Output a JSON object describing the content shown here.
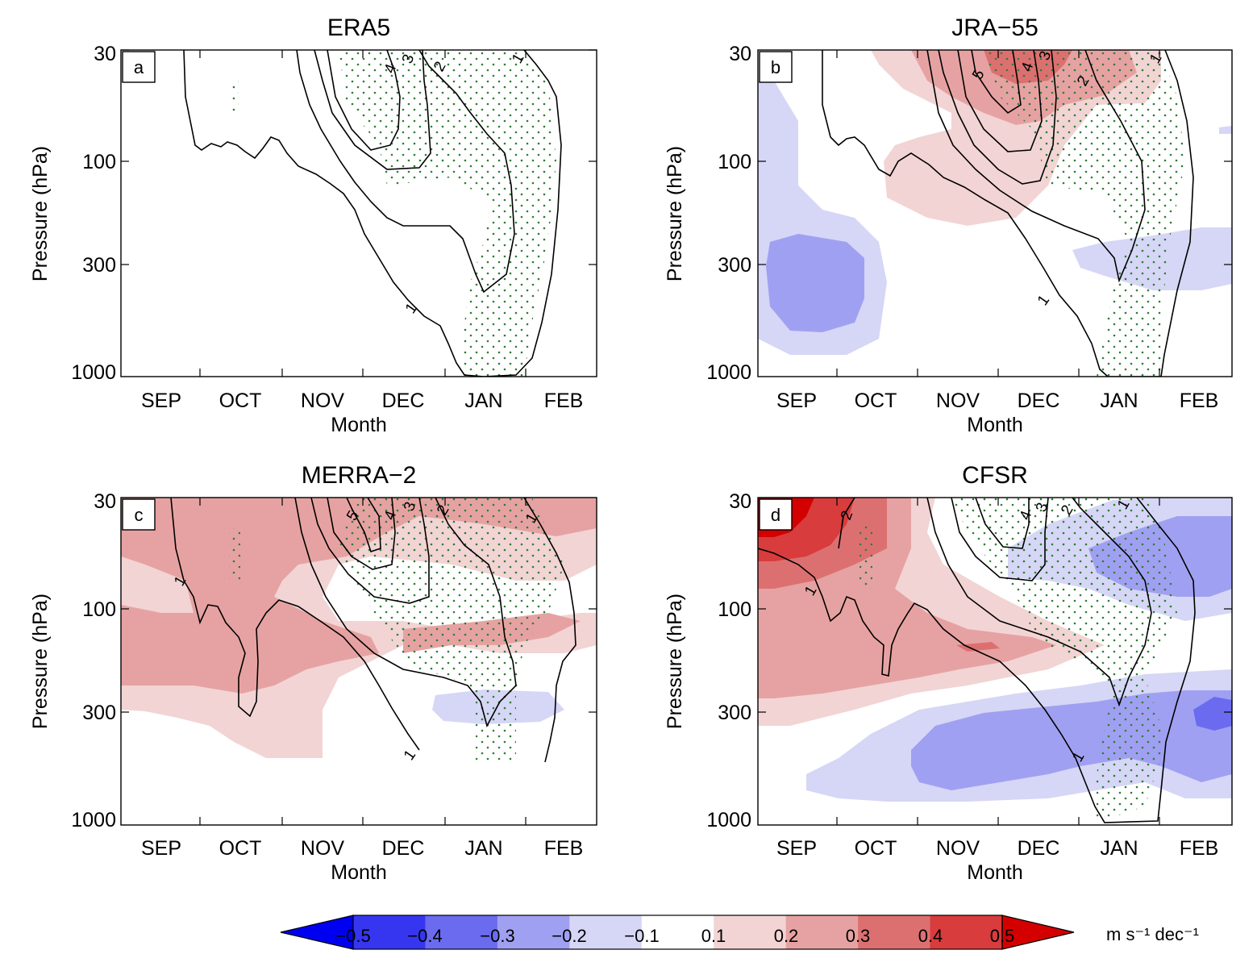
{
  "figure": {
    "units_label": "m s⁻¹ dec⁻¹",
    "colorbar": {
      "levels": [
        "−0.5",
        "−0.4",
        "−0.3",
        "−0.2",
        "−0.1",
        "0.1",
        "0.2",
        "0.3",
        "0.4",
        "0.5"
      ],
      "colors": [
        "#0000f0",
        "#3636f0",
        "#6b6bf0",
        "#a0a0f2",
        "#d6d6f6",
        "#ffffff",
        "#f2d4d4",
        "#e6a2a2",
        "#dc7070",
        "#d83c3c",
        "#d40000"
      ]
    }
  },
  "chart_data": [
    {
      "type": "heatmap",
      "panel": "a",
      "title": "ERA5",
      "xlabel": "Month",
      "ylabel": "Pressure (hPa)",
      "x_ticks": [
        "SEP",
        "OCT",
        "NOV",
        "DEC",
        "JAN",
        "FEB"
      ],
      "y_ticks": [
        "30",
        "100",
        "300",
        "1000"
      ],
      "y_scale": "log",
      "ylim": [
        1000,
        30
      ],
      "shading": [],
      "contour_labels": [
        "4",
        "3",
        "2",
        "1",
        "1"
      ],
      "stippling": "significant regions (dark green dots)"
    },
    {
      "type": "heatmap",
      "panel": "b",
      "title": "JRA−55",
      "xlabel": "Month",
      "ylabel": "Pressure (hPa)",
      "x_ticks": [
        "SEP",
        "OCT",
        "NOV",
        "DEC",
        "JAN",
        "FEB"
      ],
      "y_ticks": [
        "30",
        "100",
        "300",
        "1000"
      ],
      "y_scale": "log",
      "ylim": [
        1000,
        30
      ],
      "shading": [
        {
          "region": "SEP mid-troposphere",
          "value_range": [
            -0.3,
            -0.2
          ]
        },
        {
          "region": "NOV-DEC upper levels",
          "value_range": [
            0.3,
            0.4
          ]
        },
        {
          "region": "JAN-FEB near 300 hPa",
          "value_range": [
            -0.2,
            -0.1
          ]
        }
      ],
      "contour_labels": [
        "5",
        "4",
        "3",
        "2",
        "1",
        "1"
      ],
      "stippling": "significant regions (dark green dots)"
    },
    {
      "type": "heatmap",
      "panel": "c",
      "title": "MERRA−2",
      "xlabel": "Month",
      "ylabel": "Pressure (hPa)",
      "x_ticks": [
        "SEP",
        "OCT",
        "NOV",
        "DEC",
        "JAN",
        "FEB"
      ],
      "y_ticks": [
        "30",
        "100",
        "300",
        "1000"
      ],
      "y_scale": "log",
      "ylim": [
        1000,
        30
      ],
      "shading": [
        {
          "region": "SEP-NOV 30-300 hPa",
          "value_range": [
            0.2,
            0.3
          ]
        },
        {
          "region": "upper levels DEC-FEB",
          "value_range": [
            0.1,
            0.3
          ]
        },
        {
          "region": "JAN near 300 hPa",
          "value_range": [
            -0.2,
            -0.1
          ]
        }
      ],
      "contour_labels": [
        "5",
        "4",
        "3",
        "2",
        "1",
        "1",
        "1"
      ],
      "stippling": "significant regions (dark green dots)"
    },
    {
      "type": "heatmap",
      "panel": "d",
      "title": "CFSR",
      "xlabel": "Month",
      "ylabel": "Pressure (hPa)",
      "x_ticks": [
        "SEP",
        "OCT",
        "NOV",
        "DEC",
        "JAN",
        "FEB"
      ],
      "y_ticks": [
        "30",
        "100",
        "300",
        "1000"
      ],
      "y_scale": "log",
      "ylim": [
        1000,
        30
      ],
      "shading": [
        {
          "region": "SEP upper levels",
          "value_range": [
            0.4,
            0.5
          ]
        },
        {
          "region": "SEP-DEC 100-300 hPa",
          "value_range": [
            0.2,
            0.3
          ]
        },
        {
          "region": "DEC-FEB 30-100 hPa",
          "value_range": [
            -0.3,
            -0.1
          ]
        },
        {
          "region": "NOV-FEB 300-1000 hPa",
          "value_range": [
            -0.3,
            -0.1
          ]
        }
      ],
      "contour_labels": [
        "4",
        "3",
        "2",
        "2",
        "1",
        "1",
        "1"
      ],
      "stippling": "significant regions (dark green dots)"
    }
  ]
}
